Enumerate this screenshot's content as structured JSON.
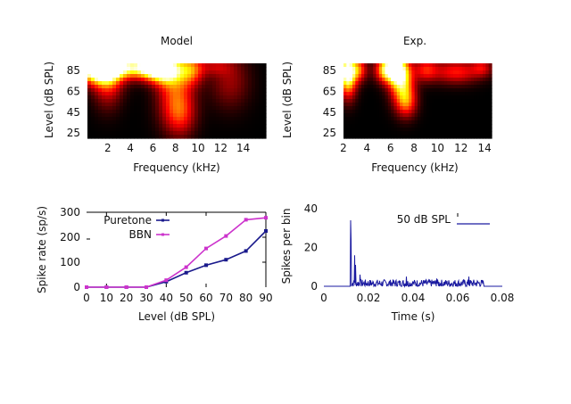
{
  "chart_data": [
    {
      "type": "heatmap",
      "title": "Model",
      "xlabel": "Frequency (kHz)",
      "ylabel": "Level (dB SPL)",
      "xlim": [
        0.2,
        16
      ],
      "ylim": [
        20,
        92
      ],
      "xticks": [
        "2",
        "4",
        "6",
        "8",
        "10",
        "12",
        "14"
      ],
      "xtick_values": [
        2,
        4,
        6,
        8,
        10,
        12,
        14
      ],
      "yticks": [
        "25",
        "45",
        "65",
        "85"
      ],
      "ytick_values": [
        25,
        45,
        65,
        85
      ],
      "colormap": "hot",
      "hotspots": [
        {
          "freq": 0.8,
          "level": 90,
          "intensity": 1.0,
          "sf": 1.2,
          "sl": 10
        },
        {
          "freq": 2.0,
          "level": 78,
          "intensity": 0.55,
          "sf": 0.9,
          "sl": 18
        },
        {
          "freq": 1.6,
          "level": 88,
          "intensity": 0.85,
          "sf": 1.4,
          "sl": 10
        },
        {
          "freq": 4.0,
          "level": 88,
          "intensity": 0.75,
          "sf": 1.5,
          "sl": 7
        },
        {
          "freq": 6.0,
          "level": 88,
          "intensity": 0.95,
          "sf": 1.0,
          "sl": 8
        },
        {
          "freq": 7.2,
          "level": 86,
          "intensity": 0.9,
          "sf": 1.0,
          "sl": 10
        },
        {
          "freq": 8.0,
          "level": 62,
          "intensity": 0.55,
          "sf": 1.1,
          "sl": 22
        },
        {
          "freq": 8.5,
          "level": 42,
          "intensity": 0.3,
          "sf": 0.9,
          "sl": 14
        },
        {
          "freq": 9.4,
          "level": 86,
          "intensity": 0.6,
          "sf": 0.8,
          "sl": 10
        },
        {
          "freq": 12.8,
          "level": 75,
          "intensity": 0.28,
          "sf": 1.2,
          "sl": 18
        },
        {
          "freq": 11.5,
          "level": 89,
          "intensity": 0.25,
          "sf": 1.0,
          "sl": 6
        }
      ]
    },
    {
      "type": "heatmap",
      "title": "Exp.",
      "xlabel": "Frequency (kHz)",
      "ylabel": "Level (dB SPL)",
      "xlim": [
        2,
        14.6
      ],
      "ylim": [
        20,
        92
      ],
      "xticks": [
        "2",
        "4",
        "6",
        "8",
        "10",
        "12",
        "14"
      ],
      "xtick_values": [
        2,
        4,
        6,
        8,
        10,
        12,
        14
      ],
      "yticks": [
        "25",
        "45",
        "65",
        "85"
      ],
      "ytick_values": [
        25,
        45,
        65,
        85
      ],
      "colormap": "hot",
      "hotspots": [
        {
          "freq": 2.3,
          "level": 86,
          "intensity": 1.0,
          "sf": 0.5,
          "sl": 10
        },
        {
          "freq": 2.4,
          "level": 72,
          "intensity": 0.6,
          "sf": 0.5,
          "sl": 12
        },
        {
          "freq": 3.3,
          "level": 86,
          "intensity": 0.6,
          "sf": 0.5,
          "sl": 8
        },
        {
          "freq": 5.5,
          "level": 86,
          "intensity": 0.7,
          "sf": 0.6,
          "sl": 8
        },
        {
          "freq": 6.5,
          "level": 86,
          "intensity": 1.15,
          "sf": 0.7,
          "sl": 10
        },
        {
          "freq": 7.0,
          "level": 70,
          "intensity": 0.75,
          "sf": 0.7,
          "sl": 14
        },
        {
          "freq": 7.4,
          "level": 54,
          "intensity": 0.45,
          "sf": 0.6,
          "sl": 10
        },
        {
          "freq": 9.0,
          "level": 86,
          "intensity": 0.45,
          "sf": 0.7,
          "sl": 8
        },
        {
          "freq": 11.6,
          "level": 84,
          "intensity": 0.5,
          "sf": 1.4,
          "sl": 8
        },
        {
          "freq": 13.8,
          "level": 88,
          "intensity": 0.35,
          "sf": 0.6,
          "sl": 6
        }
      ]
    },
    {
      "type": "line",
      "title": "",
      "xlabel": "Level (dB SPL)",
      "ylabel": "Spike rate (sp/s)",
      "xlim": [
        0,
        90
      ],
      "ylim": [
        0,
        300
      ],
      "xticks": [
        "0",
        "10",
        "20",
        "30",
        "40",
        "50",
        "60",
        "70",
        "80",
        "90"
      ],
      "xtick_values": [
        0,
        10,
        20,
        30,
        40,
        50,
        60,
        70,
        80,
        90
      ],
      "yticks": [
        "0",
        "100",
        "200",
        "300"
      ],
      "ytick_values": [
        0,
        100,
        200,
        300
      ],
      "x": [
        0,
        10,
        20,
        30,
        40,
        50,
        60,
        70,
        80,
        90
      ],
      "legend": "top-left",
      "series": [
        {
          "name": "Puretone",
          "color": "#1a1a8c",
          "values": [
            0,
            0,
            0,
            0,
            22,
            58,
            88,
            110,
            145,
            225
          ]
        },
        {
          "name": "BBN",
          "color": "#cc33cc",
          "values": [
            0,
            0,
            0,
            0,
            28,
            80,
            155,
            205,
            270,
            278
          ]
        }
      ]
    },
    {
      "type": "line",
      "title": "",
      "xlabel": "Time (s)",
      "ylabel": "Spikes per bin",
      "xlim": [
        0,
        0.08
      ],
      "ylim": [
        0,
        40
      ],
      "xticks": [
        "0",
        "0.02",
        "0.04",
        "0.06",
        "0.08"
      ],
      "xtick_values": [
        0,
        0.02,
        0.04,
        0.06,
        0.08
      ],
      "yticks": [
        "0",
        "20",
        "40"
      ],
      "ytick_values": [
        0,
        20,
        40
      ],
      "legend": "top-right",
      "series": [
        {
          "name": "50 dB SPL",
          "color": "#1a1aa0",
          "onset": 0.012,
          "offset": 0.072,
          "peaks": [
            {
              "t": 0.012,
              "v": 34
            },
            {
              "t": 0.0123,
              "v": 24
            },
            {
              "t": 0.0138,
              "v": 16
            },
            {
              "t": 0.0142,
              "v": 11
            },
            {
              "t": 0.0162,
              "v": 6
            },
            {
              "t": 0.037,
              "v": 5
            },
            {
              "t": 0.065,
              "v": 5
            },
            {
              "t": 0.0505,
              "v": 4
            }
          ],
          "sustained_mean": 1.5,
          "sustained_jitter": 2
        }
      ]
    }
  ]
}
